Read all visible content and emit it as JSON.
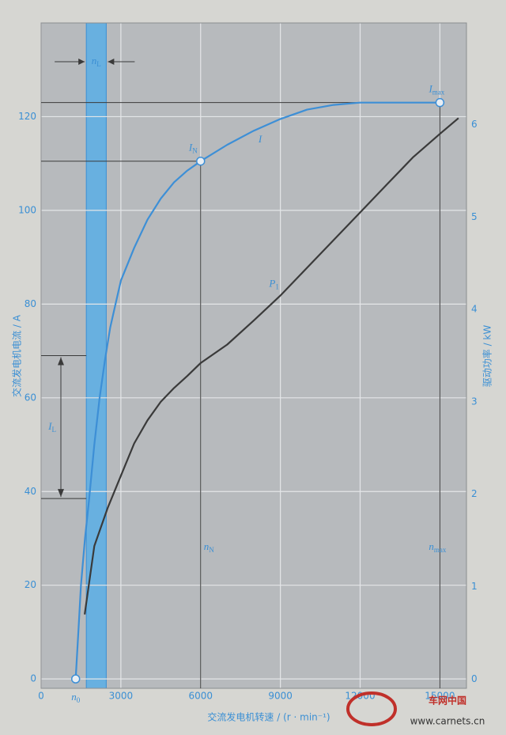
{
  "chart_data": {
    "type": "line",
    "x_label": "交流发电机转速 / (r · min⁻¹)",
    "y_label": "交流发电机电流 / A",
    "y2_label": "驱动功率 / kW",
    "xlim": [
      0,
      16000
    ],
    "xticks": [
      0,
      3000,
      6000,
      9000,
      12000,
      15000
    ],
    "ylim": [
      -2,
      140
    ],
    "yticks": [
      0,
      20,
      40,
      60,
      80,
      100,
      120
    ],
    "y2lim": [
      -0.1,
      7.1
    ],
    "y2ticks": [
      0,
      1,
      2,
      3,
      4,
      5,
      6
    ],
    "grid": true,
    "series": [
      {
        "name": "I",
        "color": "#3d8fd6",
        "x": [
          1300,
          1400,
          1500,
          1650,
          1800,
          2000,
          2200,
          2400,
          2600,
          2800,
          3000,
          3500,
          4000,
          4500,
          5000,
          5500,
          6000,
          7000,
          8000,
          9000,
          10000,
          11000,
          12000,
          13000,
          14000,
          15000
        ],
        "values": [
          0,
          10,
          20,
          30,
          38,
          50,
          60,
          68,
          75,
          80,
          85,
          92,
          98,
          102.5,
          106,
          108.5,
          110.5,
          114,
          117,
          119.5,
          121.5,
          122.5,
          123,
          123,
          123,
          123
        ]
      },
      {
        "name": "P",
        "name_sub": "1",
        "color": "#3a3a3a",
        "axis": "y2",
        "x": [
          1640,
          2000,
          2500,
          3000,
          3500,
          4000,
          4500,
          5000,
          5500,
          6000,
          7000,
          8000,
          9000,
          10000,
          11000,
          12000,
          13000,
          14000,
          15000,
          15700
        ],
        "values": [
          0.7,
          1.44,
          1.85,
          2.2,
          2.55,
          2.8,
          3.0,
          3.15,
          3.28,
          3.42,
          3.62,
          3.88,
          4.15,
          4.45,
          4.75,
          5.05,
          5.35,
          5.65,
          5.9,
          6.07
        ]
      }
    ],
    "points": [
      {
        "label": "I",
        "sub": "N",
        "x": 6000,
        "y": 110.5
      },
      {
        "label": "I",
        "sub": "max",
        "x": 15000,
        "y": 123
      },
      {
        "label": "n",
        "sub": "0",
        "x": 1300,
        "y": 0
      }
    ],
    "speed_labels": [
      {
        "label": "n",
        "sub": "N",
        "x": 6000
      },
      {
        "label": "n",
        "sub": "max",
        "x": 15000
      }
    ],
    "current_range": {
      "label": "I",
      "sub": "L",
      "y": [
        38.5,
        69
      ]
    },
    "speed_band": {
      "label": "n",
      "sub": "L",
      "x": [
        1700,
        2450
      ]
    }
  },
  "watermark": {
    "title": "车网中国",
    "url": "www.carnets.cn"
  }
}
